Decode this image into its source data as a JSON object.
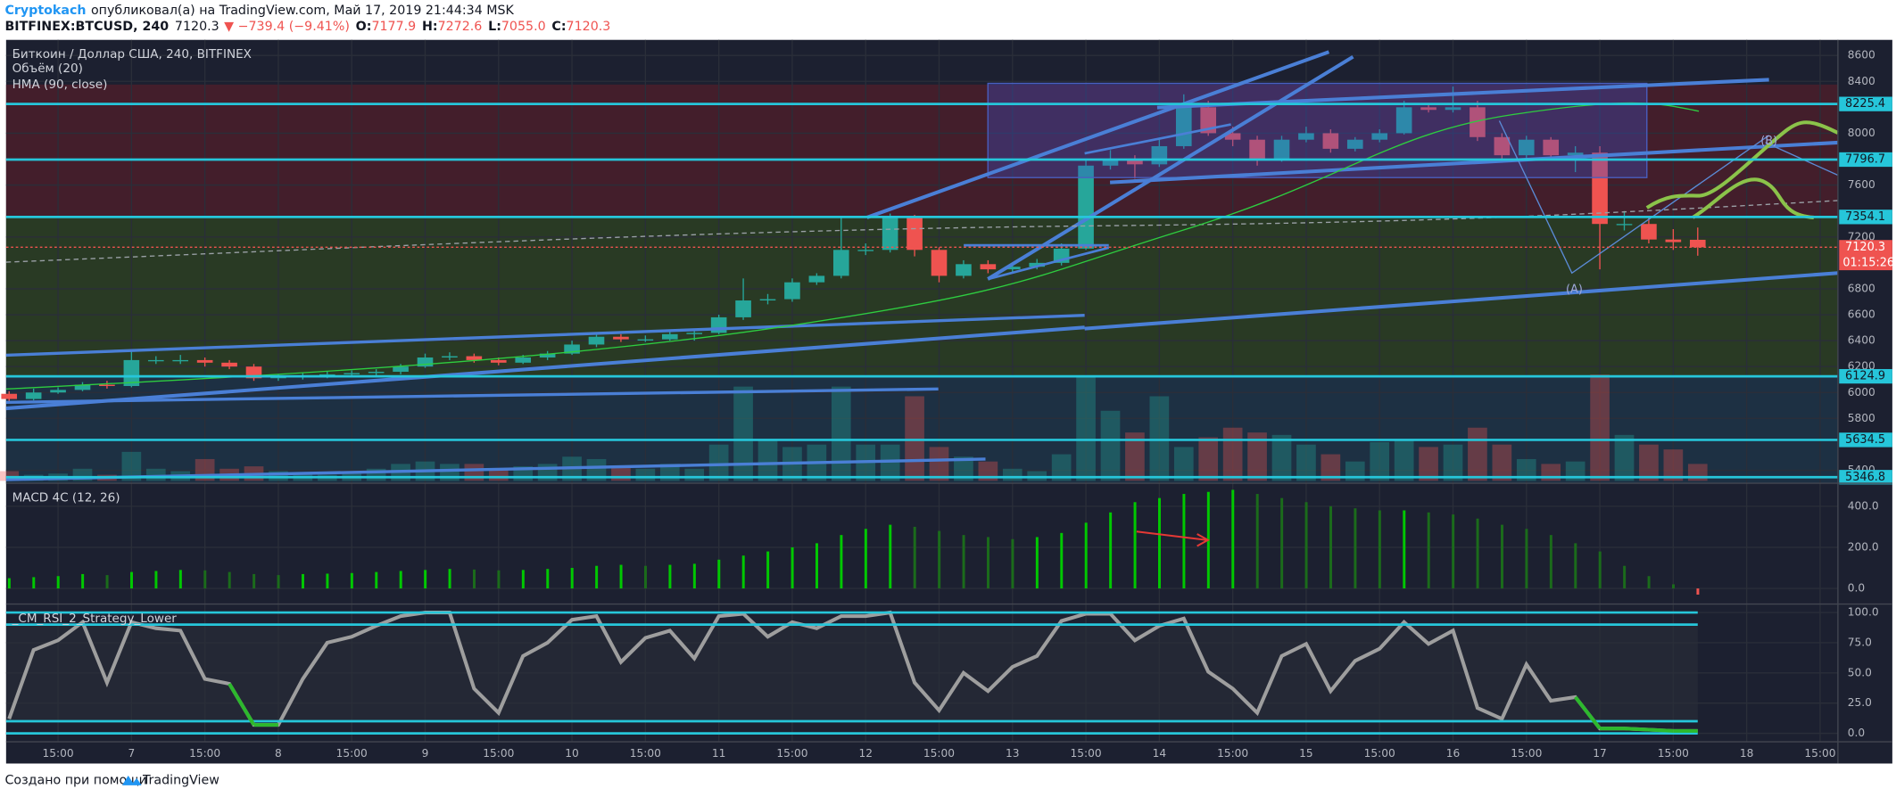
{
  "header": {
    "author": "Cryptokach",
    "published": "опубликовал(а) на TradingView.com, Май 17, 2019 21:44:34 MSK",
    "symbol": "BITFINEX:BTCUSD, 240",
    "last": "7120.3",
    "change": "▼ −739.4 (−9.41%)",
    "ohlc": [
      {
        "label": "O:",
        "value": "7177.9"
      },
      {
        "label": "H:",
        "value": "7272.6"
      },
      {
        "label": "L:",
        "value": "7055.0"
      },
      {
        "label": "C:",
        "value": "7120.3"
      }
    ]
  },
  "footer": {
    "text": "Создано при помощи",
    "brand": "TradingView"
  },
  "chart_data": [
    {
      "type": "candlestick",
      "title": "Биткоин / Доллар США, 240, BITFINEX",
      "volume_title": "Объём (20)",
      "hma_title": "HMA (90, close)",
      "up_color": "#26a69a",
      "down_color": "#ef5350",
      "level_color": "#26c6da",
      "grid": true,
      "ylim": [
        5300,
        8720
      ],
      "yticks": [
        8600,
        8400,
        8000,
        7600,
        7200,
        6800,
        6600,
        6400,
        6200,
        6000,
        5800,
        5400
      ],
      "levels": [
        8225.4,
        7796.7,
        7354.1,
        6124.9,
        5634.5,
        5346.8
      ],
      "last_price": 7120.3,
      "countdown": "01:15:26",
      "annotations": [
        "(A)",
        "(B)"
      ],
      "x_labels": [
        "15:00",
        "7",
        "15:00",
        "8",
        "15:00",
        "9",
        "15:00",
        "10",
        "15:00",
        "11",
        "15:00",
        "12",
        "15:00",
        "13",
        "15:00",
        "14",
        "15:00",
        "15",
        "15:00",
        "16",
        "15:00",
        "17",
        "15:00",
        "18",
        "15:00"
      ],
      "ohlc": [
        [
          5990,
          6010,
          5920,
          5950
        ],
        [
          5950,
          6030,
          5940,
          6000
        ],
        [
          6000,
          6040,
          5990,
          6020
        ],
        [
          6020,
          6080,
          6010,
          6060
        ],
        [
          6060,
          6090,
          6030,
          6050
        ],
        [
          6050,
          6330,
          6040,
          6250
        ],
        [
          6250,
          6280,
          6220,
          6250
        ],
        [
          6250,
          6290,
          6220,
          6250
        ],
        [
          6250,
          6270,
          6200,
          6230
        ],
        [
          6230,
          6250,
          6180,
          6200
        ],
        [
          6200,
          6220,
          6090,
          6110
        ],
        [
          6110,
          6140,
          6090,
          6120
        ],
        [
          6120,
          6150,
          6100,
          6130
        ],
        [
          6130,
          6160,
          6110,
          6140
        ],
        [
          6140,
          6170,
          6120,
          6150
        ],
        [
          6150,
          6180,
          6130,
          6160
        ],
        [
          6160,
          6220,
          6140,
          6200
        ],
        [
          6200,
          6300,
          6190,
          6270
        ],
        [
          6270,
          6310,
          6250,
          6280
        ],
        [
          6280,
          6300,
          6230,
          6250
        ],
        [
          6250,
          6270,
          6210,
          6230
        ],
        [
          6230,
          6290,
          6220,
          6270
        ],
        [
          6270,
          6320,
          6250,
          6300
        ],
        [
          6300,
          6400,
          6290,
          6370
        ],
        [
          6370,
          6460,
          6350,
          6430
        ],
        [
          6430,
          6450,
          6390,
          6410
        ],
        [
          6410,
          6440,
          6390,
          6410
        ],
        [
          6410,
          6480,
          6400,
          6450
        ],
        [
          6450,
          6490,
          6400,
          6460
        ],
        [
          6460,
          6600,
          6450,
          6580
        ],
        [
          6580,
          6880,
          6560,
          6710
        ],
        [
          6710,
          6760,
          6680,
          6720
        ],
        [
          6720,
          6880,
          6700,
          6850
        ],
        [
          6850,
          6920,
          6830,
          6900
        ],
        [
          6900,
          7350,
          6880,
          7100
        ],
        [
          7100,
          7150,
          7060,
          7100
        ],
        [
          7100,
          7380,
          7080,
          7350
        ],
        [
          7350,
          7370,
          7050,
          7100
        ],
        [
          7100,
          7120,
          6850,
          6900
        ],
        [
          6900,
          7020,
          6880,
          6990
        ],
        [
          6990,
          7020,
          6920,
          6950
        ],
        [
          6950,
          7000,
          6930,
          6970
        ],
        [
          6970,
          7030,
          6950,
          7000
        ],
        [
          7000,
          7150,
          6980,
          7110
        ],
        [
          7110,
          7800,
          7100,
          7750
        ],
        [
          7750,
          7870,
          7720,
          7800
        ],
        [
          7800,
          7830,
          7650,
          7760
        ],
        [
          7760,
          7950,
          7740,
          7900
        ],
        [
          7900,
          8300,
          7880,
          8200
        ],
        [
          8200,
          8250,
          7980,
          8000
        ],
        [
          8000,
          8050,
          7900,
          7950
        ],
        [
          7950,
          7980,
          7750,
          7800
        ],
        [
          7800,
          7980,
          7780,
          7950
        ],
        [
          7950,
          8050,
          7930,
          8000
        ],
        [
          8000,
          8030,
          7850,
          7880
        ],
        [
          7880,
          7970,
          7860,
          7950
        ],
        [
          7950,
          8030,
          7930,
          8000
        ],
        [
          8000,
          8250,
          7990,
          8200
        ],
        [
          8200,
          8230,
          8160,
          8180
        ],
        [
          8180,
          8360,
          8160,
          8200
        ],
        [
          8200,
          8250,
          7940,
          7970
        ],
        [
          7970,
          8000,
          7780,
          7830
        ],
        [
          7830,
          7980,
          7810,
          7950
        ],
        [
          7950,
          7970,
          7800,
          7830
        ],
        [
          7830,
          7900,
          7700,
          7850
        ],
        [
          7850,
          7900,
          6950,
          7300
        ],
        [
          7300,
          7400,
          7250,
          7300
        ],
        [
          7300,
          7350,
          7150,
          7180
        ],
        [
          7180,
          7260,
          7100,
          7160
        ],
        [
          7177.9,
          7272.6,
          7055.0,
          7120.3
        ]
      ],
      "vlim": [
        0,
        100
      ],
      "volume": [
        8,
        5,
        6,
        10,
        5,
        24,
        10,
        8,
        18,
        10,
        12,
        8,
        6,
        5,
        6,
        10,
        14,
        16,
        14,
        14,
        10,
        12,
        14,
        20,
        18,
        12,
        10,
        14,
        10,
        30,
        78,
        34,
        28,
        30,
        78,
        30,
        30,
        70,
        28,
        20,
        16,
        10,
        8,
        22,
        86,
        58,
        40,
        70,
        28,
        36,
        44,
        40,
        38,
        30,
        22,
        16,
        32,
        34,
        28,
        30,
        44,
        30,
        18,
        14,
        16,
        88,
        38,
        30,
        26,
        14
      ]
    },
    {
      "type": "bar",
      "title": "MACD 4C (12, 26)",
      "rising_color": "#00c800",
      "falling_color": "#1b6b1b",
      "negative_color": "#ef5350",
      "ylim": [
        -76,
        512
      ],
      "yticks": [
        {
          "value": 400,
          "label": "400.0"
        },
        {
          "value": 200,
          "label": "200.0"
        },
        {
          "value": 0,
          "label": "0.0"
        }
      ],
      "values": [
        50,
        55,
        60,
        70,
        65,
        80,
        85,
        90,
        88,
        80,
        70,
        65,
        70,
        72,
        75,
        80,
        85,
        90,
        95,
        92,
        88,
        90,
        95,
        100,
        110,
        115,
        110,
        115,
        120,
        140,
        160,
        180,
        200,
        220,
        260,
        290,
        310,
        300,
        280,
        260,
        250,
        240,
        250,
        270,
        320,
        370,
        420,
        440,
        460,
        470,
        480,
        460,
        440,
        420,
        400,
        390,
        380,
        380,
        370,
        360,
        340,
        310,
        290,
        260,
        220,
        180,
        110,
        60,
        20,
        -30
      ]
    },
    {
      "type": "line",
      "title": "_CM_RSI_2_Strategy_Lower",
      "color": "#9e9e9e",
      "signal_color": "#2db82d",
      "level_color": "#26c6da",
      "ylim": [
        -7,
        107
      ],
      "yticks": [
        {
          "value": 100,
          "label": "100.0"
        },
        {
          "value": 75,
          "label": "75.0"
        },
        {
          "value": 50,
          "label": "50.0"
        },
        {
          "value": 25,
          "label": "25.0"
        },
        {
          "value": 0,
          "label": "0.0"
        }
      ],
      "levels": [
        100,
        90,
        10,
        0
      ],
      "values": [
        12,
        69,
        77,
        92,
        42,
        92,
        87,
        85,
        45,
        41,
        7,
        7,
        45,
        75,
        80,
        89,
        97,
        100,
        100,
        37,
        17,
        64,
        75,
        94,
        97,
        59,
        79,
        85,
        62,
        97,
        99,
        80,
        92,
        87,
        97,
        97,
        100,
        42,
        19,
        50,
        35,
        55,
        64,
        93,
        99,
        99,
        77,
        89,
        95,
        51,
        37,
        17,
        64,
        74,
        35,
        60,
        70,
        92,
        74,
        85,
        21,
        12,
        57,
        27,
        30,
        4,
        4,
        3,
        2,
        2
      ]
    }
  ]
}
